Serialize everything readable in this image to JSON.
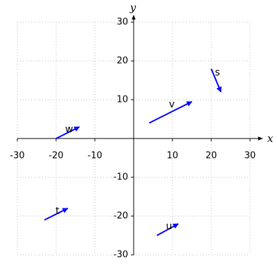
{
  "chart_data": {
    "type": "vector",
    "xlabel": "x",
    "ylabel": "y",
    "xlim": [
      -30,
      30
    ],
    "ylim": [
      -30,
      30
    ],
    "xticks": [
      -30,
      -20,
      -10,
      10,
      20,
      30
    ],
    "yticks": [
      -30,
      -20,
      -10,
      10,
      20,
      30
    ],
    "grid": true,
    "color": "#0000ff",
    "label_color": "#ff0000",
    "vectors": [
      {
        "label": "w",
        "start": [
          -20,
          0
        ],
        "end": [
          -14,
          3
        ]
      },
      {
        "label": "v",
        "start": [
          4,
          4
        ],
        "end": [
          15,
          9.5
        ]
      },
      {
        "label": "s",
        "start": [
          20,
          18
        ],
        "end": [
          22.5,
          12
        ]
      },
      {
        "label": "t",
        "start": [
          -23,
          -21
        ],
        "end": [
          -17,
          -18
        ]
      },
      {
        "label": "u",
        "start": [
          6,
          -25
        ],
        "end": [
          11.5,
          -22
        ]
      }
    ]
  }
}
